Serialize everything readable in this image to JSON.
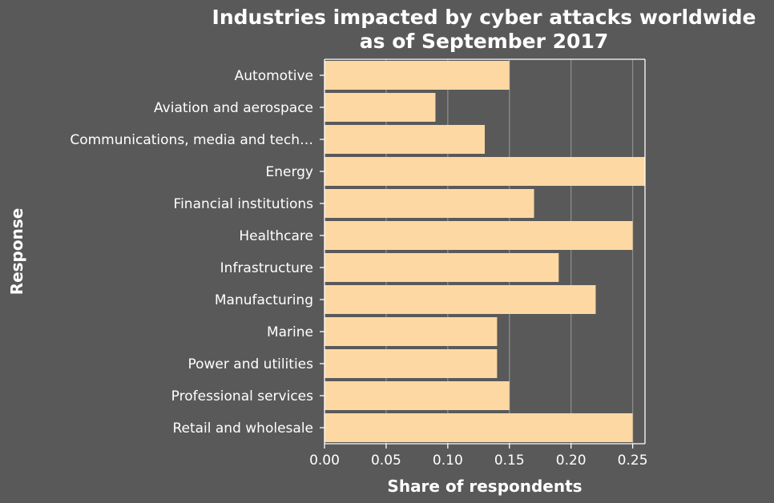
{
  "chart_data": {
    "type": "bar",
    "orientation": "horizontal",
    "title_lines": [
      "Industries impacted by cyber attacks worldwide",
      "as of September 2017"
    ],
    "xlabel": "Share of respondents",
    "ylabel": "Response",
    "categories": [
      "Automotive",
      "Aviation and aerospace",
      "Communications, media and tech…",
      "Energy",
      "Financial institutions",
      "Healthcare",
      "Infrastructure",
      "Manufacturing",
      "Marine",
      "Power and utilities",
      "Professional services",
      "Retail and wholesale"
    ],
    "values": [
      0.15,
      0.09,
      0.13,
      0.26,
      0.17,
      0.25,
      0.19,
      0.22,
      0.14,
      0.14,
      0.15,
      0.25
    ],
    "xlim": [
      0,
      0.26
    ],
    "xticks": [
      0.0,
      0.05,
      0.1,
      0.15,
      0.2,
      0.25
    ],
    "xtick_labels": [
      "0.00",
      "0.05",
      "0.10",
      "0.15",
      "0.20",
      "0.25"
    ],
    "grid": "vertical",
    "bar_color": "#fdd8a3",
    "background_color": "#595959",
    "gridline_color": "#8c8c8c",
    "text_color": "#ffffff"
  }
}
